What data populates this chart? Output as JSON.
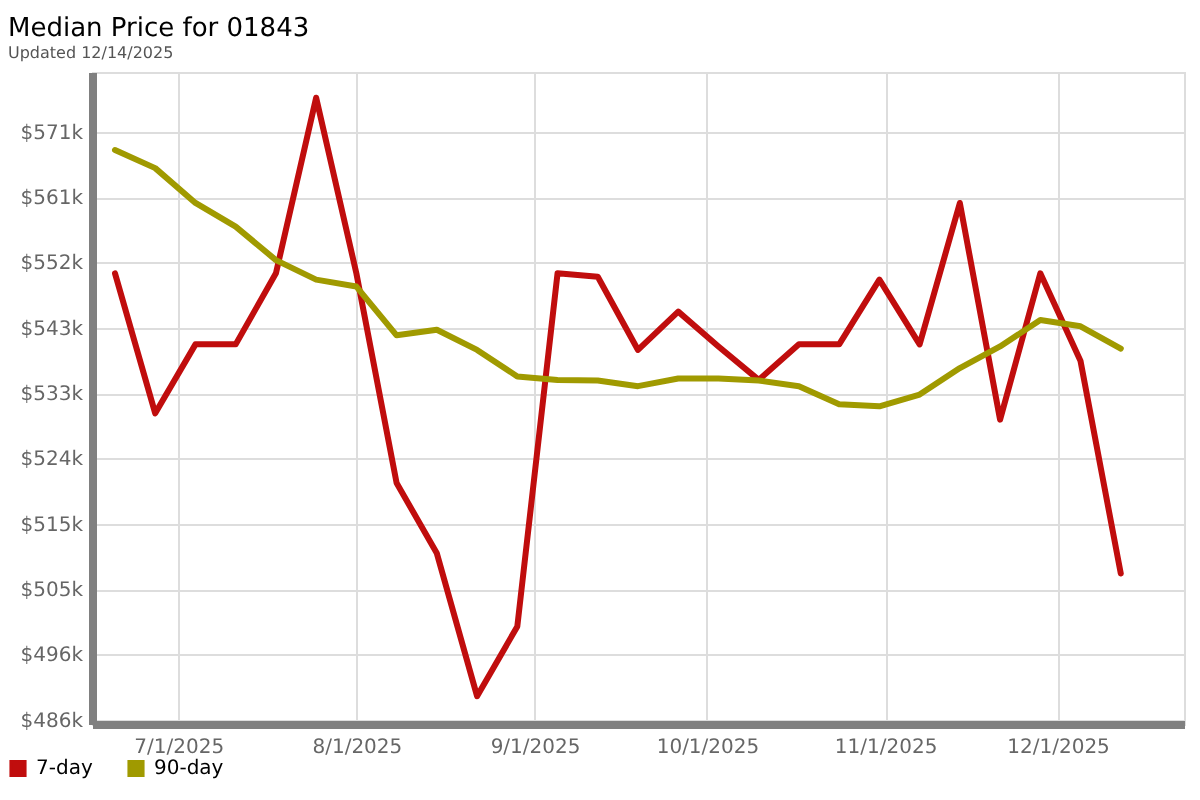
{
  "chart_data": {
    "type": "line",
    "title": "Median Price for 01843",
    "subtitle": "Updated 12/14/2025",
    "x": [
      "2025-06-20",
      "2025-06-27",
      "2025-07-04",
      "2025-07-11",
      "2025-07-18",
      "2025-07-25",
      "2025-08-01",
      "2025-08-08",
      "2025-08-15",
      "2025-08-22",
      "2025-08-29",
      "2025-09-05",
      "2025-09-12",
      "2025-09-19",
      "2025-09-26",
      "2025-10-03",
      "2025-10-10",
      "2025-10-17",
      "2025-10-24",
      "2025-10-31",
      "2025-11-07",
      "2025-11-14",
      "2025-11-21",
      "2025-11-28",
      "2025-12-05",
      "2025-12-12"
    ],
    "xlim": [
      "2025-06-16",
      "2025-12-23"
    ],
    "xticks": [
      {
        "value": "2025-07-01",
        "label": "7/1/2025"
      },
      {
        "value": "2025-08-01",
        "label": "8/1/2025"
      },
      {
        "value": "2025-09-01",
        "label": "9/1/2025"
      },
      {
        "value": "2025-10-01",
        "label": "10/1/2025"
      },
      {
        "value": "2025-11-01",
        "label": "11/1/2025"
      },
      {
        "value": "2025-12-01",
        "label": "12/1/2025"
      }
    ],
    "ylim": [
      485800,
      579400
    ],
    "yticks": [
      {
        "value": 486400,
        "label": "$486k"
      },
      {
        "value": 495780,
        "label": "$496k"
      },
      {
        "value": 505160,
        "label": "$505k"
      },
      {
        "value": 514540,
        "label": "$515k"
      },
      {
        "value": 523920,
        "label": "$524k"
      },
      {
        "value": 533300,
        "label": "$533k"
      },
      {
        "value": 542680,
        "label": "$543k"
      },
      {
        "value": 552060,
        "label": "$552k"
      },
      {
        "value": 561440,
        "label": "$561k"
      },
      {
        "value": 570820,
        "label": "$571k"
      }
    ],
    "series": [
      {
        "name": "7-day",
        "color": "#c00d0d",
        "values": [
          550500,
          530400,
          540300,
          540300,
          550500,
          575700,
          550500,
          520400,
          510300,
          489800,
          499800,
          550500,
          550000,
          539500,
          545000,
          540000,
          535200,
          540300,
          540300,
          549600,
          540300,
          560600,
          529500,
          550500,
          537900,
          507400
        ]
      },
      {
        "name": "90-day",
        "color": "#a09a00",
        "values": [
          568200,
          565600,
          560600,
          557200,
          552400,
          549600,
          548600,
          541600,
          542400,
          539500,
          535700,
          535200,
          535100,
          534300,
          535400,
          535400,
          535100,
          534300,
          531700,
          531400,
          533100,
          536900,
          540000,
          543800,
          542900,
          539700
        ]
      }
    ],
    "grid": true,
    "legend": "bottom left",
    "line_style": "solid"
  }
}
